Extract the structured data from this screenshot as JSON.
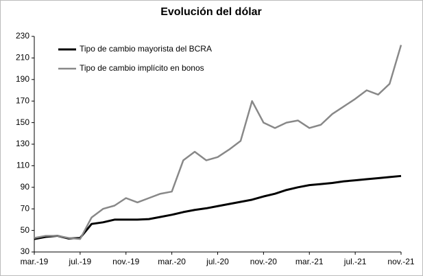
{
  "chart_data": {
    "type": "line",
    "title": "Evolución del dólar",
    "categories": [
      "mar.-19",
      null,
      null,
      null,
      "jul.-19",
      null,
      null,
      null,
      "nov.-19",
      null,
      null,
      null,
      "mar.-20",
      null,
      null,
      null,
      "jul.-20",
      null,
      null,
      null,
      "nov.-20",
      null,
      null,
      null,
      "mar.-21",
      null,
      null,
      null,
      "jul.-21",
      null,
      null,
      null,
      "nov.-21"
    ],
    "series": [
      {
        "name": "Tipo de cambio mayorista del BCRA",
        "color": "#000000",
        "values": [
          42,
          44,
          45,
          42.5,
          43,
          56,
          57.5,
          60,
          60,
          60,
          60.5,
          62.5,
          64.5,
          67,
          69,
          70.5,
          72.5,
          74.5,
          76.5,
          78.5,
          81.5,
          84,
          87.5,
          90,
          92,
          93,
          94,
          95.5,
          96.5,
          97.5,
          98.5,
          99.5,
          100.5
        ]
      },
      {
        "name": "Tipo de cambio implícito en bonos",
        "color": "#888888",
        "values": [
          43,
          45,
          45,
          43,
          42,
          62,
          70,
          73,
          80,
          76,
          80,
          84,
          86,
          115,
          123,
          115,
          118,
          125,
          133,
          170,
          150,
          145,
          150,
          152,
          145,
          148,
          158,
          165,
          172,
          180,
          176,
          186,
          222
        ]
      }
    ],
    "ylim": [
      30,
      230
    ],
    "yticks": [
      30,
      50,
      70,
      90,
      110,
      130,
      150,
      170,
      190,
      210,
      230
    ],
    "grid": false,
    "legend": "top-left"
  }
}
